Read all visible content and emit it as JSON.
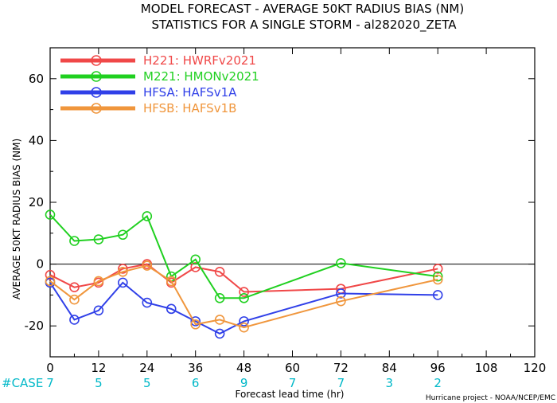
{
  "chart_data": {
    "type": "line",
    "title": "MODEL FORECAST - AVERAGE 50KT RADIUS BIAS (NM)",
    "subtitle": "STATISTICS FOR A SINGLE STORM - al282020_ZETA",
    "xlabel": "Forecast lead time (hr)",
    "ylabel": "AVERAGE 50KT RADIUS BIAS (NM)",
    "xlim": [
      0,
      120
    ],
    "ylim": [
      -30,
      70
    ],
    "xticks": [
      0,
      12,
      24,
      36,
      48,
      60,
      72,
      84,
      96,
      108,
      120
    ],
    "yticks": [
      -20,
      0,
      20,
      40,
      60
    ],
    "zero_line": true,
    "legend_position": "top-left",
    "case_label": "#CASE",
    "cases": [
      {
        "x": 0,
        "n": "7"
      },
      {
        "x": 12,
        "n": "5"
      },
      {
        "x": 24,
        "n": "5"
      },
      {
        "x": 36,
        "n": "6"
      },
      {
        "x": 48,
        "n": "9"
      },
      {
        "x": 60,
        "n": "7"
      },
      {
        "x": 72,
        "n": "7"
      },
      {
        "x": 84,
        "n": "3"
      },
      {
        "x": 96,
        "n": "2"
      }
    ],
    "credit": "Hurricane project - NOAA/NCEP/EMC",
    "series": [
      {
        "code": "H221:",
        "name": "HWRFv2021",
        "color": "#f04848",
        "points": [
          [
            0,
            -3.5
          ],
          [
            6,
            -7.5
          ],
          [
            12,
            -6
          ],
          [
            18,
            -1.5
          ],
          [
            24,
            0
          ],
          [
            30,
            -6
          ],
          [
            36,
            -1
          ],
          [
            42,
            -2.5
          ],
          [
            48,
            -9
          ],
          [
            72,
            -8
          ],
          [
            96,
            -1.5
          ]
        ]
      },
      {
        "code": "M221:",
        "name": "HMONv2021",
        "color": "#20d020",
        "points": [
          [
            0,
            16
          ],
          [
            6,
            7.5
          ],
          [
            12,
            8
          ],
          [
            18,
            9.5
          ],
          [
            24,
            15.5
          ],
          [
            30,
            -4
          ],
          [
            36,
            1.5
          ],
          [
            42,
            -11
          ],
          [
            48,
            -11
          ],
          [
            72,
            0.3
          ],
          [
            96,
            -4
          ]
        ]
      },
      {
        "code": "HFSA:",
        "name": "HAFSv1A",
        "color": "#3040e8",
        "points": [
          [
            0,
            -6
          ],
          [
            6,
            -18
          ],
          [
            12,
            -15
          ],
          [
            18,
            -6
          ],
          [
            24,
            -12.5
          ],
          [
            30,
            -14.5
          ],
          [
            36,
            -18.5
          ],
          [
            42,
            -22.5
          ],
          [
            48,
            -18.5
          ],
          [
            72,
            -9.5
          ],
          [
            96,
            -10
          ]
        ]
      },
      {
        "code": "HFSB:",
        "name": "HAFSv1B",
        "color": "#f0963c",
        "points": [
          [
            0,
            -5.5
          ],
          [
            6,
            -11.5
          ],
          [
            12,
            -5.5
          ],
          [
            18,
            -2.5
          ],
          [
            24,
            -0.5
          ],
          [
            30,
            -5.5
          ],
          [
            36,
            -19.5
          ],
          [
            42,
            -18
          ],
          [
            48,
            -20.5
          ],
          [
            72,
            -12
          ],
          [
            96,
            -5
          ]
        ]
      }
    ]
  }
}
